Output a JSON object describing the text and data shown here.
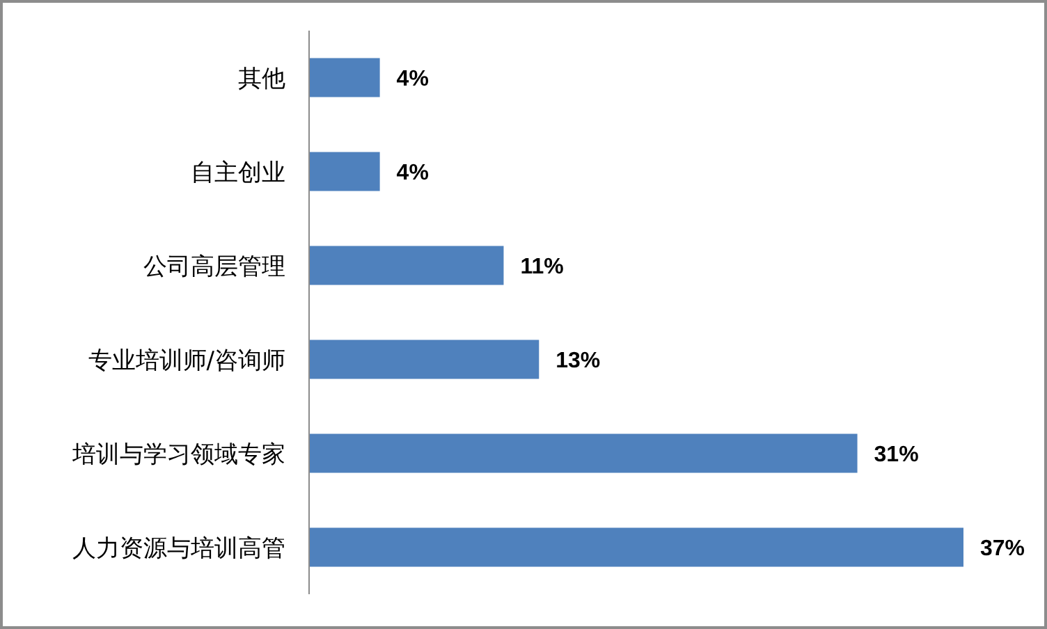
{
  "chart_data": {
    "type": "bar",
    "orientation": "horizontal",
    "categories": [
      "其他",
      "自主创业",
      "公司高层管理",
      "专业培训师/咨询师",
      "培训与学习领域专家",
      "人力资源与培训高管"
    ],
    "values": [
      4,
      4,
      11,
      13,
      31,
      37
    ],
    "value_labels": [
      "4%",
      "4%",
      "11%",
      "13%",
      "31%",
      "37%"
    ],
    "color": "#4f81bd"
  }
}
